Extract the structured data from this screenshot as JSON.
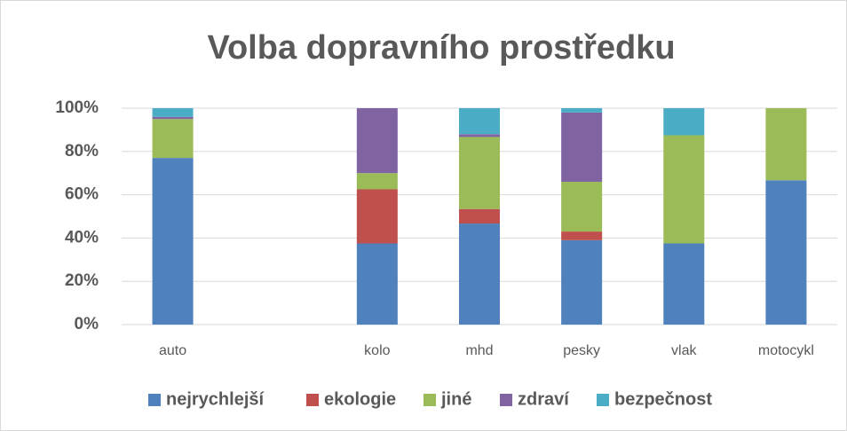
{
  "chart_data": {
    "type": "stacked_bar",
    "title": "Volba dopravního prostředku",
    "categories": [
      "auto",
      null,
      "kolo",
      "mhd",
      "pesky",
      "vlak",
      "motocykl"
    ],
    "series": [
      {
        "name": "nejrychlejší",
        "color": "#4f81bd",
        "values": [
          77,
          null,
          37.5,
          46.7,
          39,
          37.5,
          66.7
        ]
      },
      {
        "name": "ekologie",
        "color": "#c0504d",
        "values": [
          0,
          null,
          25,
          6.7,
          4,
          0,
          0
        ]
      },
      {
        "name": "jiné",
        "color": "#9bbb59",
        "values": [
          18,
          null,
          7.5,
          33.3,
          23,
          50,
          33.3
        ]
      },
      {
        "name": "zdraví",
        "color": "#8064a2",
        "values": [
          1,
          null,
          30,
          1.3,
          32,
          0,
          0
        ]
      },
      {
        "name": "bezpečnost",
        "color": "#4bacc6",
        "values": [
          4,
          null,
          0,
          12,
          2,
          12.5,
          0
        ]
      }
    ],
    "ylim": [
      0,
      100
    ],
    "yticks": [
      {
        "value": 0,
        "label": "0%"
      },
      {
        "value": 20,
        "label": "20%"
      },
      {
        "value": 40,
        "label": "40%"
      },
      {
        "value": 60,
        "label": "60%"
      },
      {
        "value": 80,
        "label": "80%"
      },
      {
        "value": 100,
        "label": "100%"
      }
    ],
    "grid": true,
    "legend": "bottom"
  }
}
